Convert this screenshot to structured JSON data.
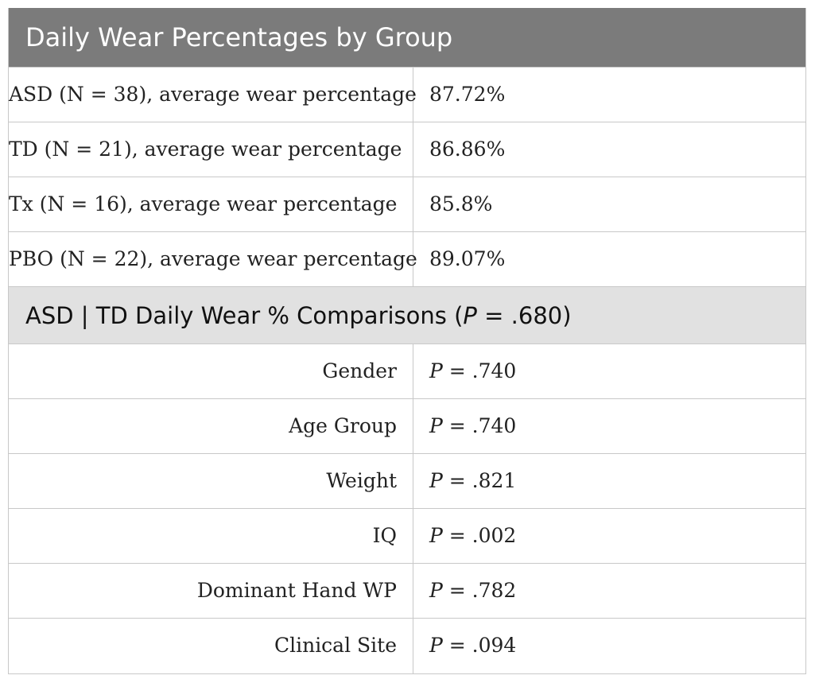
{
  "title": "Daily Wear Percentages by Group",
  "group_rows": [
    {
      "label": "ASD (N = 38), average wear percentage",
      "value": "87.72%"
    },
    {
      "label": "TD (N = 21), average wear percentage",
      "value": "86.86%"
    },
    {
      "label": "Tx (N = 16), average wear percentage",
      "value": "85.8%"
    },
    {
      "label": "PBO (N = 22), average wear percentage",
      "value": "89.07%"
    }
  ],
  "section": {
    "prefix": "ASD | TD Daily Wear % Comparisons (",
    "p_letter": "P",
    "suffix": " = .680)"
  },
  "comparison_rows": [
    {
      "label": "Gender",
      "p_letter": "P",
      "value": " = .740"
    },
    {
      "label": "Age Group",
      "p_letter": "P",
      "value": " = .740"
    },
    {
      "label": "Weight",
      "p_letter": "P",
      "value": " = .821"
    },
    {
      "label": "IQ",
      "p_letter": "P",
      "value": " = .002"
    },
    {
      "label": "Dominant Hand WP",
      "p_letter": "P",
      "value": " = .782"
    },
    {
      "label": "Clinical Site",
      "p_letter": "P",
      "value": " = .094"
    }
  ]
}
